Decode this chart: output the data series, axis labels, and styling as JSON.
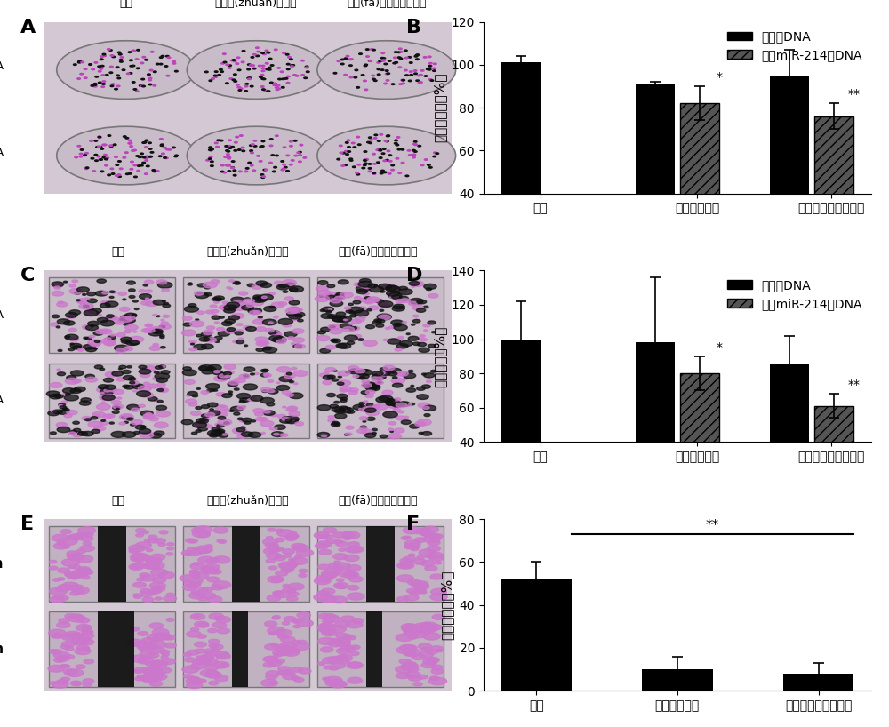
{
  "panel_labels": [
    "A",
    "B",
    "C",
    "D",
    "E",
    "F"
  ],
  "B_categories": [
    "空白",
    "商用转染试剂",
    "本发明纳米基因载体"
  ],
  "B_ctrl_vals": [
    101,
    91,
    95
  ],
  "B_ctrl_errs": [
    3,
    1,
    12
  ],
  "B_mir_vals": [
    null,
    82,
    76
  ],
  "B_mir_errs": [
    null,
    8,
    6
  ],
  "B_ylabel": "克隆形成率（%）",
  "B_ylim": [
    40,
    120
  ],
  "B_yticks": [
    40,
    60,
    80,
    100,
    120
  ],
  "B_star1": "*",
  "B_star2": "**",
  "B_legend1": "对照组DNA",
  "B_legend2": "嵌有miR-214的DNA",
  "D_categories": [
    "空白",
    "商用转染试剂",
    "本发明纳米基因载体"
  ],
  "D_ctrl_vals": [
    100,
    98,
    85
  ],
  "D_ctrl_errs": [
    22,
    38,
    17
  ],
  "D_mir_vals": [
    null,
    80,
    61
  ],
  "D_mir_errs": [
    null,
    10,
    7
  ],
  "D_ylabel": "迁移效率（%）",
  "D_ylim": [
    40,
    140
  ],
  "D_yticks": [
    40,
    60,
    80,
    100,
    120,
    140
  ],
  "D_star1": "*",
  "D_star2": "**",
  "D_legend1": "对照组DNA",
  "D_legend2": "嵌有miR-214的DNA",
  "F_categories": [
    "空白",
    "商用转染试剂",
    "本发明纳米基因载体"
  ],
  "F_vals": [
    52,
    10,
    8
  ],
  "F_errs": [
    8,
    6,
    5
  ],
  "F_ylabel": "划痕愈合率（%）",
  "F_ylim": [
    0,
    80
  ],
  "F_yticks": [
    0,
    20,
    40,
    60,
    80
  ],
  "F_star": "**",
  "bar_color_solid": "#000000",
  "hatch_pattern": "///",
  "bg_color": "#ffffff",
  "label_fontsize": 14,
  "tick_fontsize": 10,
  "legend_fontsize": 10,
  "axis_label_fontsize": 11
}
